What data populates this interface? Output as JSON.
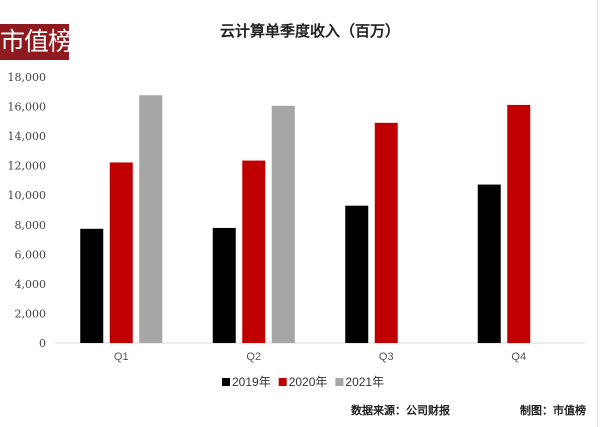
{
  "logo_text": "市值榜",
  "chart_data": {
    "type": "bar",
    "title": "云计算单季度收入（百万）",
    "categories": [
      "Q1",
      "Q2",
      "Q3",
      "Q4"
    ],
    "series": [
      {
        "name": "2019年",
        "color": "#000000",
        "values": [
          7728,
          7787,
          9291,
          10721
        ]
      },
      {
        "name": "2020年",
        "color": "#c00000",
        "values": [
          12217,
          12345,
          14899,
          16112
        ]
      },
      {
        "name": "2021年",
        "color": "#a6a6a6",
        "values": [
          16765,
          16051,
          null,
          null
        ]
      }
    ],
    "ylim": [
      0,
      18000
    ],
    "yticks": [
      "0",
      "2,000",
      "4,000",
      "6,000",
      "8,000",
      "10,000",
      "12,000",
      "14,000",
      "16,000",
      "18,000"
    ],
    "grid": false,
    "legend": "bottom"
  },
  "footer": {
    "source": "数据来源：公司财报",
    "made_by": "制图：市值榜"
  }
}
